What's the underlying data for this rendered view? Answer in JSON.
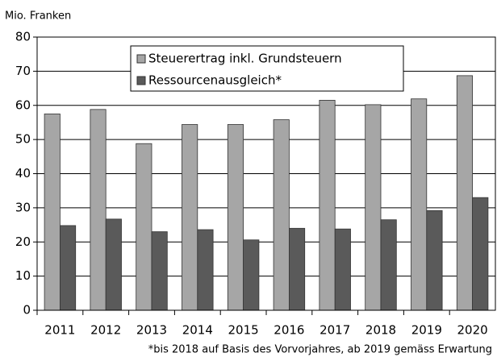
{
  "chart_data": {
    "type": "bar",
    "y_label": "Mio. Franken",
    "annotation": "*bis 2018 auf Basis des Vorvorjahres, ab 2019 gemäss Erwartung",
    "categories": [
      "2011",
      "2012",
      "2013",
      "2014",
      "2015",
      "2016",
      "2017",
      "2018",
      "2019",
      "2020"
    ],
    "series": [
      {
        "name": "Steuerertrag inkl. Grundsteuern",
        "color": "#a6a6a6",
        "values": [
          57.5,
          58.8,
          48.8,
          54.4,
          54.4,
          55.8,
          61.5,
          60.2,
          61.9,
          68.7
        ]
      },
      {
        "name": "Ressourcenausgleich*",
        "color": "#5a5a5a",
        "values": [
          24.8,
          26.7,
          23.0,
          23.6,
          20.6,
          24.0,
          23.8,
          26.5,
          29.2,
          33.0
        ]
      }
    ],
    "ylim": [
      0,
      80
    ],
    "yticks": [
      0,
      10,
      20,
      30,
      40,
      50,
      60,
      70,
      80
    ],
    "grid": true,
    "legend": "top"
  }
}
